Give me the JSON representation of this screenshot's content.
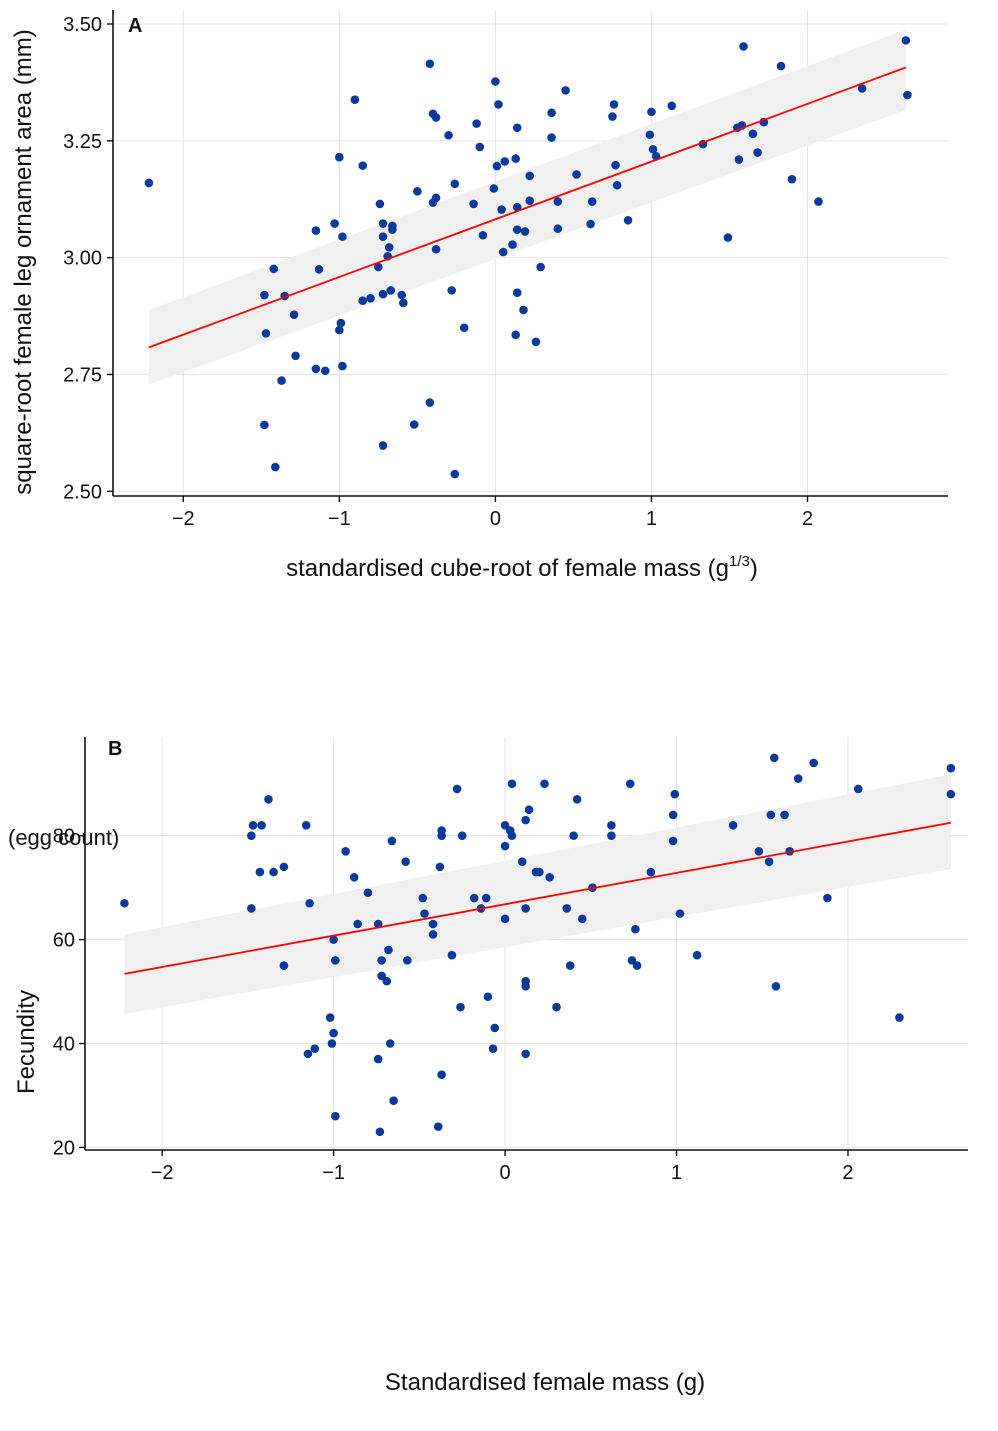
{
  "colors": {
    "point": "#0a3a9c",
    "fit_line": "#ff0000",
    "ribbon": "#f0f0f0",
    "grid": "#e4e4e4",
    "axis": "#111111"
  },
  "chart_data": [
    {
      "type": "scatter",
      "panel_label": "A",
      "xlabel": "standardised cube-root of female mass (g",
      "xlabel_sup": "1/3",
      "xlabel_end": ")",
      "ylabel": "square-root female leg ornament area (mm)",
      "xlim": [
        -2.45,
        2.9
      ],
      "ylim": [
        2.49,
        3.53
      ],
      "xticks": [
        -2,
        -1,
        0,
        1,
        2
      ],
      "xtick_labels": [
        "−2",
        "−1",
        "0",
        "1",
        "2"
      ],
      "yticks": [
        2.5,
        2.75,
        3.0,
        3.25,
        3.5
      ],
      "ytick_labels": [
        "2.50",
        "2.75",
        "3.00",
        "3.25",
        "3.50"
      ],
      "grid": true,
      "fit": {
        "x": [
          -2.22,
          2.63
        ],
        "y": [
          2.808,
          3.407
        ]
      },
      "band": {
        "x": [
          -2.22,
          2.63
        ],
        "upper": [
          2.888,
          3.488
        ],
        "lower": [
          2.728,
          3.316
        ]
      },
      "points": [
        [
          -2.22,
          3.16
        ],
        [
          -0.42,
          3.415
        ],
        [
          -0.9,
          3.338
        ],
        [
          0.0,
          3.377
        ],
        [
          0.45,
          3.358
        ],
        [
          1.59,
          3.452
        ],
        [
          1.83,
          3.41
        ],
        [
          2.63,
          3.465
        ],
        [
          2.64,
          3.348
        ],
        [
          2.35,
          3.362
        ],
        [
          -0.4,
          3.308
        ],
        [
          -0.38,
          3.3
        ],
        [
          -0.3,
          3.262
        ],
        [
          -0.12,
          3.287
        ],
        [
          0.02,
          3.328
        ],
        [
          0.14,
          3.278
        ],
        [
          0.36,
          3.31
        ],
        [
          0.36,
          3.257
        ],
        [
          0.76,
          3.328
        ],
        [
          0.75,
          3.302
        ],
        [
          1.0,
          3.312
        ],
        [
          1.13,
          3.325
        ],
        [
          -1.0,
          3.215
        ],
        [
          -0.85,
          3.197
        ],
        [
          -0.1,
          3.237
        ],
        [
          0.06,
          3.206
        ],
        [
          0.01,
          3.196
        ],
        [
          0.13,
          3.212
        ],
        [
          0.22,
          3.175
        ],
        [
          0.52,
          3.178
        ],
        [
          0.77,
          3.198
        ],
        [
          0.99,
          3.263
        ],
        [
          1.01,
          3.232
        ],
        [
          1.03,
          3.217
        ],
        [
          1.33,
          3.243
        ],
        [
          1.55,
          3.278
        ],
        [
          1.58,
          3.283
        ],
        [
          1.65,
          3.265
        ],
        [
          1.72,
          3.29
        ],
        [
          1.68,
          3.225
        ],
        [
          1.56,
          3.21
        ],
        [
          -0.74,
          3.115
        ],
        [
          -0.5,
          3.142
        ],
        [
          -0.38,
          3.128
        ],
        [
          -0.4,
          3.118
        ],
        [
          -0.26,
          3.158
        ],
        [
          -0.14,
          3.115
        ],
        [
          -0.01,
          3.148
        ],
        [
          0.04,
          3.103
        ],
        [
          0.14,
          3.108
        ],
        [
          0.22,
          3.122
        ],
        [
          0.4,
          3.12
        ],
        [
          0.62,
          3.12
        ],
        [
          0.78,
          3.155
        ],
        [
          1.9,
          3.168
        ],
        [
          -1.03,
          3.073
        ],
        [
          -1.15,
          3.058
        ],
        [
          -0.98,
          3.045
        ],
        [
          -0.72,
          3.073
        ],
        [
          -0.66,
          3.068
        ],
        [
          -0.66,
          3.06
        ],
        [
          -0.72,
          3.045
        ],
        [
          -0.38,
          3.018
        ],
        [
          -0.08,
          3.048
        ],
        [
          0.05,
          3.012
        ],
        [
          0.11,
          3.028
        ],
        [
          0.19,
          3.056
        ],
        [
          0.14,
          3.06
        ],
        [
          0.4,
          3.062
        ],
        [
          0.61,
          3.072
        ],
        [
          0.85,
          3.08
        ],
        [
          1.49,
          3.043
        ],
        [
          2.07,
          3.12
        ],
        [
          -1.42,
          2.976
        ],
        [
          -1.13,
          2.975
        ],
        [
          -0.75,
          2.98
        ],
        [
          -0.69,
          3.003
        ],
        [
          -0.68,
          3.022
        ],
        [
          -0.28,
          2.93
        ],
        [
          -0.72,
          2.922
        ],
        [
          -0.67,
          2.93
        ],
        [
          -0.6,
          2.92
        ],
        [
          -0.59,
          2.903
        ],
        [
          -0.85,
          2.908
        ],
        [
          -0.8,
          2.913
        ],
        [
          -1.48,
          2.92
        ],
        [
          -1.35,
          2.918
        ],
        [
          -1.29,
          2.878
        ],
        [
          -0.99,
          2.86
        ],
        [
          -1.0,
          2.845
        ],
        [
          -1.47,
          2.838
        ],
        [
          -1.28,
          2.79
        ],
        [
          -1.15,
          2.762
        ],
        [
          -1.09,
          2.758
        ],
        [
          -0.98,
          2.768
        ],
        [
          -1.37,
          2.737
        ],
        [
          -0.2,
          2.85
        ],
        [
          0.14,
          2.925
        ],
        [
          0.18,
          2.888
        ],
        [
          0.13,
          2.835
        ],
        [
          0.26,
          2.82
        ],
        [
          0.29,
          2.98
        ],
        [
          -0.42,
          2.69
        ],
        [
          -1.48,
          2.642
        ],
        [
          -0.52,
          2.643
        ],
        [
          -0.72,
          2.598
        ],
        [
          -1.41,
          2.552
        ],
        [
          -0.26,
          2.537
        ]
      ]
    },
    {
      "type": "scatter",
      "panel_label": "B",
      "xlabel": "Standardised female mass (g)",
      "ylabel": "Fecundity",
      "unit_note": "(egg count)",
      "xlim": [
        -2.45,
        2.7
      ],
      "ylim": [
        19.5,
        99
      ],
      "xticks": [
        -2,
        -1,
        0,
        1,
        2
      ],
      "xtick_labels": [
        "−2",
        "−1",
        "0",
        "1",
        "2"
      ],
      "yticks": [
        20,
        40,
        60,
        80
      ],
      "ytick_labels": [
        "20",
        "40",
        "60",
        "80"
      ],
      "grid": true,
      "fit": {
        "x": [
          -2.22,
          2.6
        ],
        "y": [
          53.4,
          82.5
        ]
      },
      "band": {
        "x": [
          -2.22,
          2.6
        ],
        "upper": [
          61.0,
          91.8
        ],
        "lower": [
          45.7,
          73.6
        ]
      },
      "points": [
        [
          -2.22,
          67
        ],
        [
          -1.48,
          66
        ],
        [
          -1.48,
          80
        ],
        [
          -1.47,
          82
        ],
        [
          -1.42,
          82
        ],
        [
          -1.43,
          73
        ],
        [
          -1.38,
          87
        ],
        [
          -1.35,
          73
        ],
        [
          -1.29,
          74
        ],
        [
          -1.29,
          55
        ],
        [
          -1.16,
          82
        ],
        [
          -1.14,
          67
        ],
        [
          -1.0,
          60
        ],
        [
          -0.99,
          56
        ],
        [
          -0.93,
          77
        ],
        [
          -0.88,
          72
        ],
        [
          -0.86,
          63
        ],
        [
          -0.8,
          69
        ],
        [
          -0.74,
          63
        ],
        [
          -0.72,
          56
        ],
        [
          -0.72,
          53
        ],
        [
          -0.69,
          52
        ],
        [
          -0.68,
          58
        ],
        [
          -0.66,
          79
        ],
        [
          -0.58,
          75
        ],
        [
          -0.57,
          56
        ],
        [
          -0.48,
          68
        ],
        [
          -0.47,
          65
        ],
        [
          -0.42,
          63
        ],
        [
          -0.42,
          61
        ],
        [
          -0.38,
          74
        ],
        [
          -0.37,
          81
        ],
        [
          -0.37,
          80
        ],
        [
          -0.31,
          57
        ],
        [
          -0.28,
          89
        ],
        [
          -0.26,
          47
        ],
        [
          -0.25,
          80
        ],
        [
          -0.18,
          68
        ],
        [
          -0.14,
          66
        ],
        [
          -0.11,
          68
        ],
        [
          -0.1,
          49
        ],
        [
          -0.07,
          39
        ],
        [
          -0.06,
          43
        ],
        [
          0.0,
          64
        ],
        [
          0.0,
          82
        ],
        [
          0.0,
          78
        ],
        [
          0.03,
          81
        ],
        [
          0.04,
          90
        ],
        [
          0.04,
          80
        ],
        [
          0.1,
          75
        ],
        [
          0.12,
          66
        ],
        [
          0.12,
          83
        ],
        [
          0.14,
          85
        ],
        [
          0.18,
          73
        ],
        [
          0.2,
          73
        ],
        [
          0.23,
          90
        ],
        [
          0.26,
          72
        ],
        [
          0.3,
          47
        ],
        [
          0.36,
          66
        ],
        [
          0.38,
          55
        ],
        [
          0.4,
          80
        ],
        [
          0.42,
          87
        ],
        [
          0.45,
          64
        ],
        [
          0.51,
          70
        ],
        [
          0.62,
          82
        ],
        [
          0.62,
          80
        ],
        [
          0.73,
          90
        ],
        [
          0.74,
          56
        ],
        [
          0.76,
          62
        ],
        [
          0.77,
          55
        ],
        [
          0.85,
          73
        ],
        [
          0.98,
          79
        ],
        [
          0.98,
          84
        ],
        [
          0.99,
          88
        ],
        [
          1.02,
          65
        ],
        [
          1.12,
          57
        ],
        [
          1.33,
          82
        ],
        [
          1.48,
          77
        ],
        [
          1.54,
          75
        ],
        [
          1.55,
          84
        ],
        [
          1.57,
          95
        ],
        [
          1.58,
          51
        ],
        [
          1.63,
          84
        ],
        [
          1.66,
          77
        ],
        [
          1.71,
          91
        ],
        [
          1.8,
          94
        ],
        [
          1.88,
          68
        ],
        [
          2.06,
          89
        ],
        [
          2.3,
          45
        ],
        [
          2.6,
          93
        ],
        [
          2.6,
          88
        ],
        [
          -1.02,
          45
        ],
        [
          -1.0,
          42
        ],
        [
          -1.01,
          40
        ],
        [
          -1.11,
          39
        ],
        [
          -1.15,
          38
        ],
        [
          -0.74,
          37
        ],
        [
          -0.67,
          40
        ],
        [
          -0.37,
          34
        ],
        [
          0.12,
          38
        ],
        [
          -0.65,
          29
        ],
        [
          -0.99,
          26
        ],
        [
          -0.39,
          24
        ],
        [
          -0.73,
          23
        ],
        [
          0.12,
          52
        ],
        [
          0.12,
          51
        ]
      ]
    }
  ]
}
